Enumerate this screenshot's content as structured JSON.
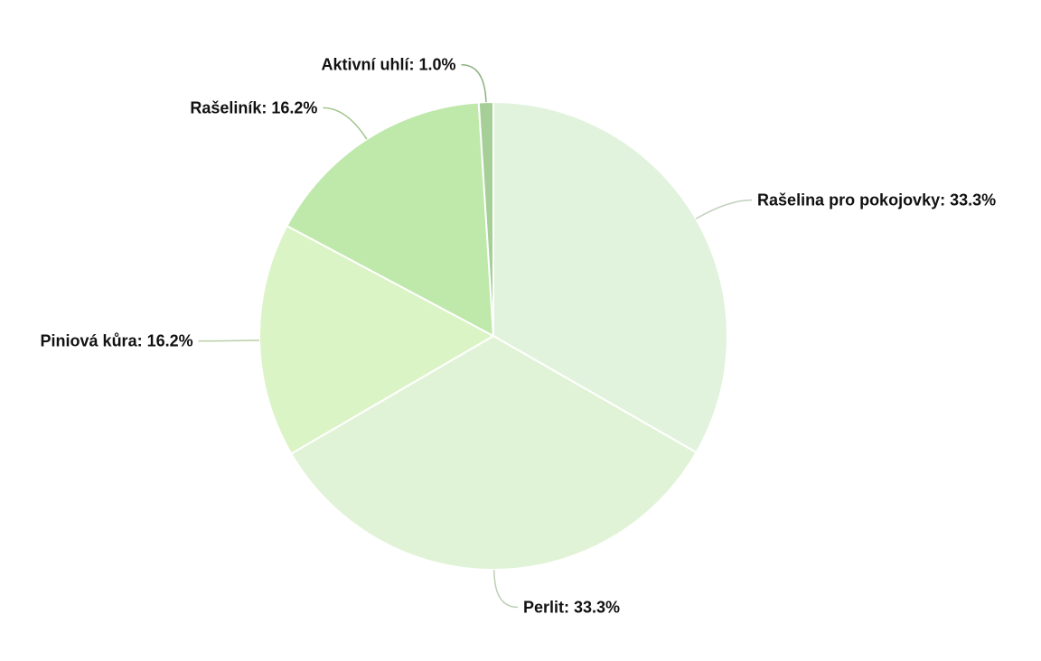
{
  "chart_data": {
    "type": "pie",
    "title": "",
    "start_angle_deg": 0,
    "direction": "clockwise",
    "slices": [
      {
        "name": "Rašelina pro pokojovky",
        "value": 33.3,
        "label": "Rašelina pro pokojovky: 33.3%",
        "color": "#e1f3dc"
      },
      {
        "name": "Perlit",
        "value": 33.3,
        "label": "Perlit: 33.3%",
        "color": "#e1f3d7"
      },
      {
        "name": "Piniová kůra",
        "value": 16.2,
        "label": "Piniová kůra: 16.2%",
        "color": "#dbf4c6"
      },
      {
        "name": "Rašeliník",
        "value": 16.2,
        "label": "Rašeliník: 16.2%",
        "color": "#bfe8ab"
      },
      {
        "name": "Aktivní uhlí",
        "value": 1.0,
        "label": "Aktivní uhlí: 1.0%",
        "color": "#a6cf98"
      }
    ]
  }
}
